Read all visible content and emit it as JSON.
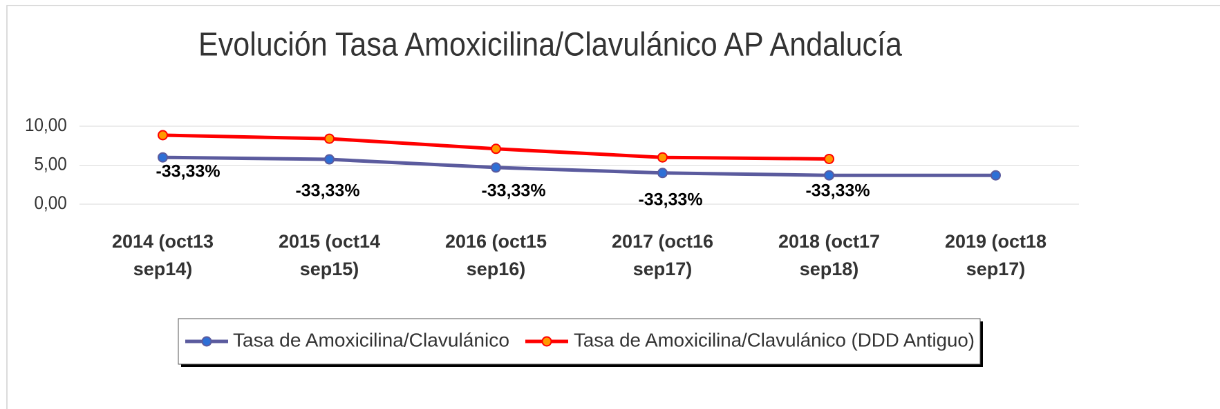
{
  "chart_data": {
    "type": "line",
    "title": "Evolución Tasa Amoxicilina/Clavulánico AP Andalucía",
    "categories": [
      "2014 (oct13\nsep14)",
      "2015 (oct14\nsep15)",
      "2016 (oct15\nsep16)",
      "2017 (oct16\nsep17)",
      "2018 (oct17\nsep18)",
      "2019 (oct18\nsep17)"
    ],
    "series": [
      {
        "name": "Tasa de Amoxicilina/Clavulánico",
        "color": "#5b5b9e",
        "marker_color": "#2e6fd6",
        "values": [
          6.0,
          5.75,
          4.7,
          4.0,
          3.7,
          3.7
        ]
      },
      {
        "name": "Tasa de Amoxicilina/Clavulánico (DDD Antiguo)",
        "color": "#ff0000",
        "marker_color": "#ff9900",
        "values": [
          8.85,
          8.4,
          7.1,
          6.0,
          5.8,
          null
        ]
      }
    ],
    "annotations": [
      "-33,33%",
      "-33,33%",
      "-33,33%",
      "-33,33%",
      "-33,33%"
    ],
    "ylim": [
      0,
      10
    ],
    "yticks": [
      {
        "value": 0,
        "label": "0,00"
      },
      {
        "value": 5,
        "label": "5,00"
      },
      {
        "value": 10,
        "label": "10,00"
      }
    ],
    "grid": true,
    "legend": "bottom"
  }
}
